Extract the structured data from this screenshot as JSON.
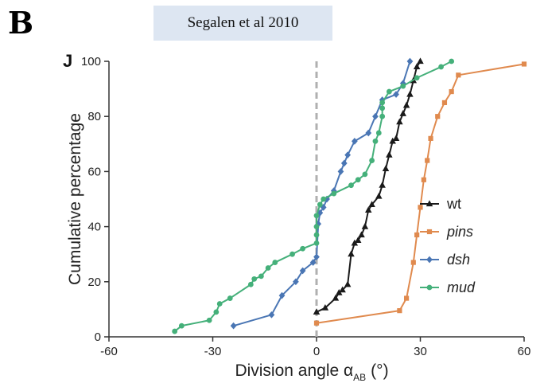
{
  "header": {
    "panel_letter": "B",
    "citation": "Segalen et al 2010",
    "sublabel": "J"
  },
  "chart_data": {
    "type": "line",
    "xlabel": "Division angle α",
    "xlabel_subscript": "AB",
    "xlabel_unit": "(°)",
    "ylabel": "Cumulative percentage",
    "xlim": [
      -60,
      60
    ],
    "ylim": [
      0,
      100
    ],
    "xticks": [
      -60,
      -30,
      0,
      30,
      60
    ],
    "yticks": [
      0,
      20,
      40,
      60,
      80,
      100
    ],
    "reference_line": {
      "x": 0,
      "style": "dashed",
      "color": "#b0b0b0"
    },
    "legend_position": "right",
    "series": [
      {
        "name": "wt",
        "color": "#1a1a1a",
        "marker": "triangle",
        "italic": false,
        "points": [
          [
            0,
            9
          ],
          [
            2.5,
            10.5
          ],
          [
            5.5,
            14
          ],
          [
            6.5,
            16
          ],
          [
            7.5,
            17
          ],
          [
            9,
            19
          ],
          [
            10,
            30
          ],
          [
            11,
            34
          ],
          [
            12,
            35
          ],
          [
            13,
            37
          ],
          [
            14,
            40
          ],
          [
            15,
            46
          ],
          [
            16,
            48
          ],
          [
            18,
            51
          ],
          [
            19,
            55
          ],
          [
            20,
            61
          ],
          [
            21,
            66
          ],
          [
            22,
            71
          ],
          [
            23,
            72
          ],
          [
            24,
            78
          ],
          [
            25,
            81
          ],
          [
            26,
            84
          ],
          [
            27,
            88
          ],
          [
            28,
            93
          ],
          [
            29,
            98
          ],
          [
            30,
            100
          ]
        ]
      },
      {
        "name": "pins",
        "color": "#e08a4e",
        "marker": "square",
        "italic": true,
        "points": [
          [
            0,
            5
          ],
          [
            24,
            9.5
          ],
          [
            26,
            14
          ],
          [
            28,
            27
          ],
          [
            29,
            37
          ],
          [
            30,
            47
          ],
          [
            31,
            57
          ],
          [
            32,
            64
          ],
          [
            33,
            72
          ],
          [
            35,
            80
          ],
          [
            37,
            85
          ],
          [
            39,
            89
          ],
          [
            41,
            95
          ],
          [
            60,
            99
          ]
        ]
      },
      {
        "name": "dsh",
        "color": "#4a76b4",
        "marker": "diamond",
        "italic": true,
        "points": [
          [
            -24,
            4
          ],
          [
            -13,
            8
          ],
          [
            -10,
            15
          ],
          [
            -6,
            20
          ],
          [
            -4,
            24
          ],
          [
            -1,
            27
          ],
          [
            0,
            29
          ],
          [
            0.5,
            41
          ],
          [
            1,
            45
          ],
          [
            2,
            47
          ],
          [
            3,
            50
          ],
          [
            5,
            53
          ],
          [
            7,
            60
          ],
          [
            8,
            63
          ],
          [
            9,
            66
          ],
          [
            11,
            71
          ],
          [
            15,
            74
          ],
          [
            17,
            80
          ],
          [
            19,
            86
          ],
          [
            23,
            88
          ],
          [
            25,
            92
          ],
          [
            27,
            100
          ]
        ]
      },
      {
        "name": "mud",
        "color": "#45b07a",
        "marker": "circle",
        "italic": true,
        "points": [
          [
            -41,
            2
          ],
          [
            -39,
            4
          ],
          [
            -31,
            6
          ],
          [
            -29,
            9
          ],
          [
            -28,
            12
          ],
          [
            -25,
            14
          ],
          [
            -19,
            19
          ],
          [
            -18,
            21
          ],
          [
            -16,
            22
          ],
          [
            -14,
            25
          ],
          [
            -12,
            27
          ],
          [
            -7,
            30
          ],
          [
            -4,
            32
          ],
          [
            0,
            34
          ],
          [
            0,
            37
          ],
          [
            0,
            40
          ],
          [
            0,
            44
          ],
          [
            1,
            48
          ],
          [
            2,
            50
          ],
          [
            5,
            52
          ],
          [
            10,
            55
          ],
          [
            12,
            57
          ],
          [
            14,
            59
          ],
          [
            16,
            64
          ],
          [
            17,
            71
          ],
          [
            18,
            74
          ],
          [
            19,
            80
          ],
          [
            19,
            83
          ],
          [
            19,
            85
          ],
          [
            21,
            89
          ],
          [
            25,
            91
          ],
          [
            29,
            94
          ],
          [
            36,
            98
          ],
          [
            39,
            100
          ]
        ]
      }
    ]
  }
}
